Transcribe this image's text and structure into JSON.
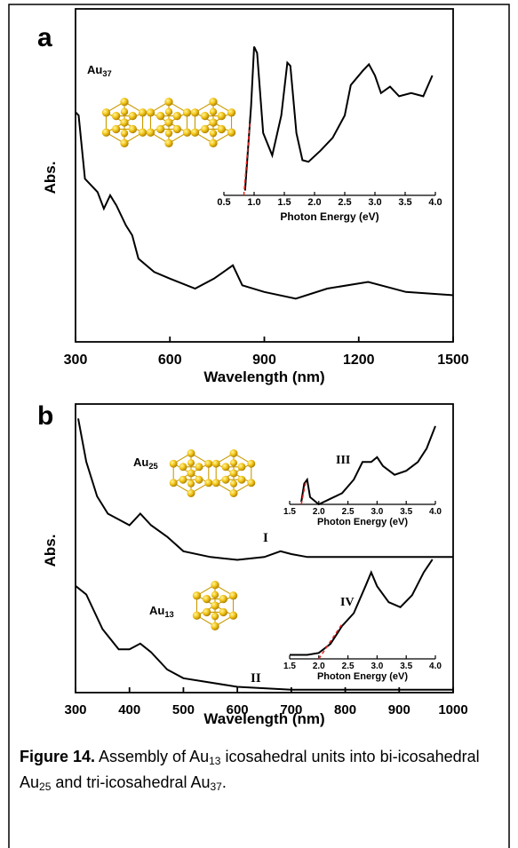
{
  "chart_data": [
    {
      "type": "line",
      "panel_label": "a",
      "x_label": "Wavelength (nm)",
      "y_label": "Abs.",
      "xlim": [
        300,
        1500
      ],
      "xticks": [
        300,
        600,
        900,
        1200,
        1500
      ],
      "ylim": [
        0,
        1
      ],
      "series": [
        {
          "color": "#000000",
          "dashed": false,
          "x": [
            300,
            310,
            330,
            370,
            390,
            410,
            430,
            460,
            480,
            500,
            550,
            600,
            680,
            740,
            770,
            800,
            830,
            900,
            1000,
            1100,
            1230,
            1350,
            1500
          ],
          "values": [
            0.69,
            0.68,
            0.49,
            0.45,
            0.4,
            0.44,
            0.41,
            0.35,
            0.32,
            0.25,
            0.21,
            0.19,
            0.16,
            0.19,
            0.21,
            0.23,
            0.17,
            0.15,
            0.13,
            0.16,
            0.18,
            0.15,
            0.14
          ]
        }
      ],
      "annotations": [
        {
          "parts": [
            "Au",
            "37"
          ]
        }
      ]
    },
    {
      "type": "line",
      "x_label": "Photon Energy (eV)",
      "xlim": [
        0.5,
        4.0
      ],
      "xticks": [
        0.5,
        {
          "value": 1,
          "label": "1.0"
        },
        1.5,
        {
          "value": 2,
          "label": "2.0"
        },
        2.5,
        {
          "value": 3,
          "label": "3.0"
        },
        3.5,
        {
          "value": 4,
          "label": "4.0"
        }
      ],
      "ylim": [
        0,
        1
      ],
      "series": [
        {
          "color": "#000000",
          "dashed": false,
          "x": [
            0.85,
            0.95,
            1.0,
            1.05,
            1.15,
            1.3,
            1.45,
            1.55,
            1.6,
            1.7,
            1.8,
            1.9,
            2.1,
            2.3,
            2.5,
            2.6,
            2.8,
            2.9,
            3.0,
            3.1,
            3.25,
            3.4,
            3.6,
            3.8,
            3.95
          ],
          "values": [
            0.03,
            0.56,
            0.93,
            0.89,
            0.39,
            0.25,
            0.5,
            0.83,
            0.81,
            0.39,
            0.22,
            0.21,
            0.28,
            0.36,
            0.5,
            0.69,
            0.78,
            0.82,
            0.75,
            0.64,
            0.68,
            0.62,
            0.64,
            0.62,
            0.75
          ]
        },
        {
          "color": "#e8201f",
          "dashed": true,
          "x": [
            0.83,
            0.93
          ],
          "values": [
            0,
            0.45
          ]
        }
      ],
      "annotations": []
    },
    {
      "type": "line",
      "panel_label": "b",
      "x_label": "Wavelength (nm)",
      "y_label": "Abs.",
      "xlim": [
        300,
        1000
      ],
      "xticks": [
        300,
        400,
        500,
        600,
        700,
        800,
        900,
        1000
      ],
      "ylim": [
        0,
        1
      ],
      "series": [
        {
          "color": "#000000",
          "dashed": false,
          "x": [
            305,
            320,
            340,
            360,
            380,
            400,
            420,
            440,
            470,
            500,
            550,
            600,
            650,
            680,
            700,
            730,
            800,
            900,
            1000
          ],
          "values": [
            0.95,
            0.8,
            0.68,
            0.62,
            0.6,
            0.58,
            0.62,
            0.58,
            0.54,
            0.49,
            0.47,
            0.46,
            0.47,
            0.49,
            0.48,
            0.47,
            0.47,
            0.47,
            0.47
          ]
        },
        {
          "color": "#000000",
          "dashed": false,
          "x": [
            300,
            320,
            350,
            380,
            400,
            420,
            440,
            470,
            500,
            600,
            700,
            1000
          ],
          "values": [
            0.37,
            0.34,
            0.22,
            0.15,
            0.15,
            0.17,
            0.14,
            0.08,
            0.05,
            0.02,
            0.01,
            0.01
          ]
        }
      ],
      "annotations": [
        {
          "parts": [
            "Au",
            "25"
          ]
        },
        {
          "parts": [
            "Au",
            "13"
          ]
        },
        {
          "parts": [
            "I"
          ]
        },
        {
          "parts": [
            "II"
          ]
        }
      ]
    },
    {
      "type": "line",
      "x_label": "Photon Energy (eV)",
      "xlim": [
        1.5,
        4.0
      ],
      "xticks": [
        1.5,
        {
          "value": 2,
          "label": "2.0"
        },
        2.5,
        {
          "value": 3,
          "label": "3.0"
        },
        3.5,
        {
          "value": 4,
          "label": "4.0"
        }
      ],
      "ylim": [
        0,
        1
      ],
      "series": [
        {
          "color": "#000000",
          "dashed": false,
          "x": [
            1.7,
            1.75,
            1.8,
            1.85,
            2.0,
            2.2,
            2.4,
            2.6,
            2.75,
            2.9,
            3.0,
            3.1,
            3.3,
            3.5,
            3.7,
            3.85,
            4.0
          ],
          "values": [
            0.03,
            0.26,
            0.31,
            0.09,
            0,
            0.07,
            0.14,
            0.31,
            0.53,
            0.53,
            0.59,
            0.48,
            0.37,
            0.42,
            0.53,
            0.7,
            0.98
          ]
        },
        {
          "color": "#e8201f",
          "dashed": true,
          "x": [
            1.7,
            1.78
          ],
          "values": [
            0,
            0.3
          ]
        }
      ],
      "annotations": [
        {
          "parts": [
            "III"
          ]
        }
      ]
    },
    {
      "type": "line",
      "x_label": "Photon Energy (eV)",
      "xlim": [
        1.5,
        4.0
      ],
      "xticks": [
        1.5,
        {
          "value": 2,
          "label": "2.0"
        },
        2.5,
        {
          "value": 3,
          "label": "3.0"
        },
        3.5,
        {
          "value": 4,
          "label": "4.0"
        }
      ],
      "ylim": [
        0,
        1
      ],
      "series": [
        {
          "color": "#000000",
          "dashed": false,
          "x": [
            1.5,
            1.8,
            2.0,
            2.2,
            2.4,
            2.6,
            2.8,
            2.9,
            3.0,
            3.2,
            3.4,
            3.6,
            3.8,
            3.95
          ],
          "values": [
            0.04,
            0.04,
            0.06,
            0.15,
            0.33,
            0.46,
            0.73,
            0.87,
            0.73,
            0.57,
            0.52,
            0.64,
            0.87,
            1.0
          ]
        },
        {
          "color": "#e8201f",
          "dashed": true,
          "x": [
            2.0,
            2.4
          ],
          "values": [
            0,
            0.35
          ]
        }
      ],
      "annotations": [
        {
          "parts": [
            "IV"
          ]
        }
      ]
    }
  ],
  "caption": {
    "label": "Figure 14.",
    "parts": [
      " Assembly of Au",
      "13",
      " icosahedral units into bi-icosahedral Au",
      "25",
      " and tri-icosahedral Au",
      "37",
      "."
    ]
  }
}
